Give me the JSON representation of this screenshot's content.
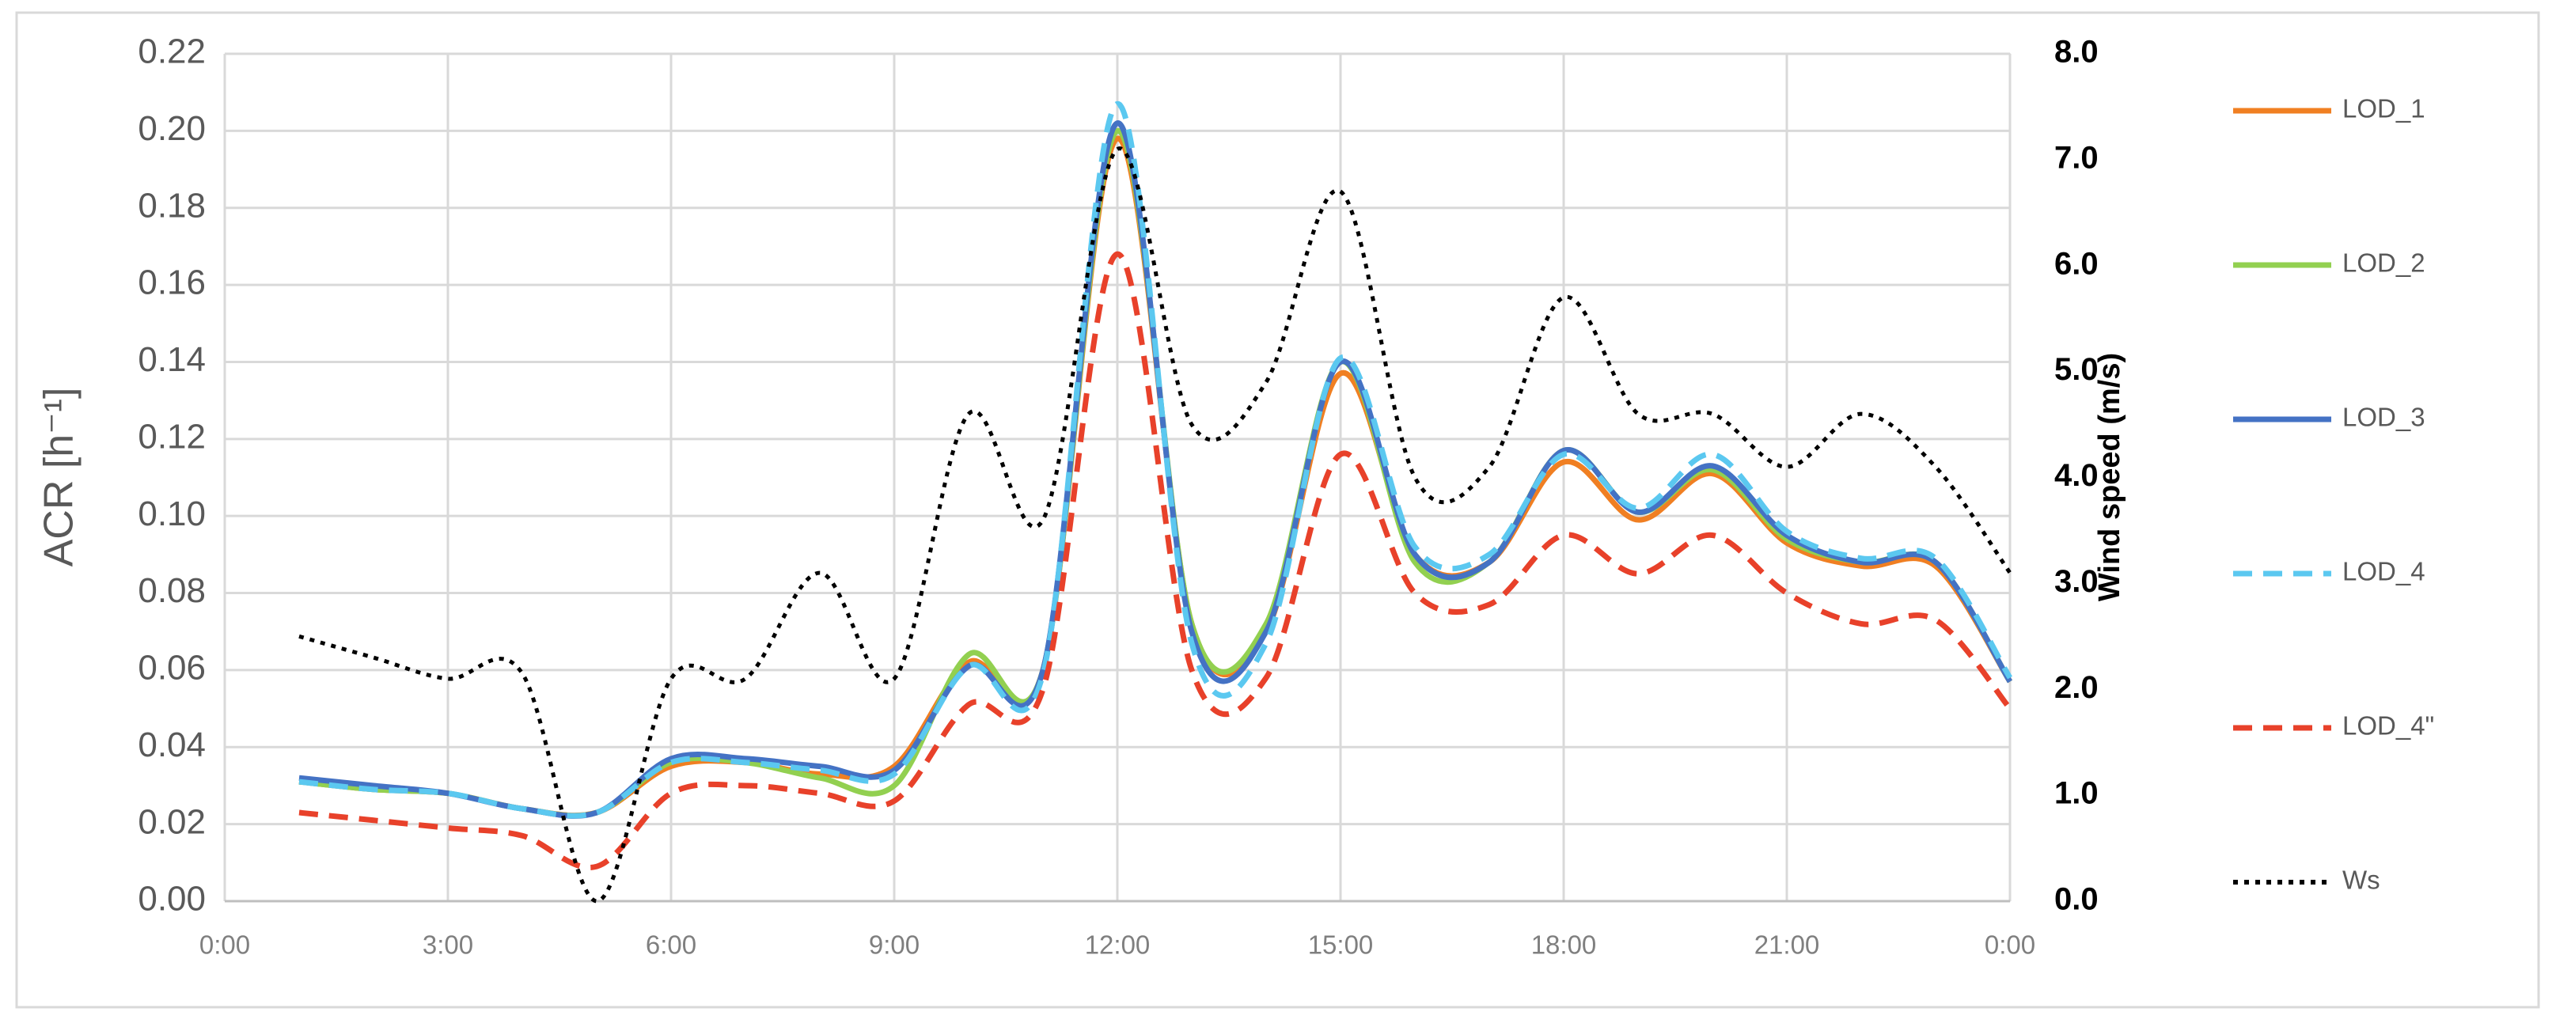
{
  "chart_data": {
    "type": "line",
    "y_label": "ACR [h⁻¹]",
    "y2_label": "Wind speed (m/s)",
    "x": [
      1,
      2,
      3,
      4,
      5,
      6,
      7,
      8,
      9,
      10,
      11,
      12,
      13,
      14,
      15,
      16,
      17,
      18,
      19,
      20,
      21,
      22,
      23,
      24
    ],
    "xlim": [
      0,
      24
    ],
    "xticks": [
      {
        "value": 0,
        "label": "0:00"
      },
      {
        "value": 3,
        "label": "3:00"
      },
      {
        "value": 6,
        "label": "6:00"
      },
      {
        "value": 9,
        "label": "9:00"
      },
      {
        "value": 12,
        "label": "12:00"
      },
      {
        "value": 15,
        "label": "15:00"
      },
      {
        "value": 18,
        "label": "18:00"
      },
      {
        "value": 21,
        "label": "21:00"
      },
      {
        "value": 24,
        "label": "0:00"
      }
    ],
    "ylim": [
      0,
      0.22
    ],
    "yticks": [
      {
        "value": 0,
        "label": "0.00"
      },
      {
        "value": 0.02,
        "label": "0.02"
      },
      {
        "value": 0.04,
        "label": "0.04"
      },
      {
        "value": 0.06,
        "label": "0.06"
      },
      {
        "value": 0.08,
        "label": "0.08"
      },
      {
        "value": 0.1,
        "label": "0.10"
      },
      {
        "value": 0.12,
        "label": "0.12"
      },
      {
        "value": 0.14,
        "label": "0.14"
      },
      {
        "value": 0.16,
        "label": "0.16"
      },
      {
        "value": 0.18,
        "label": "0.18"
      },
      {
        "value": 0.2,
        "label": "0.20"
      },
      {
        "value": 0.22,
        "label": "0.22"
      }
    ],
    "y2lim": [
      0,
      8
    ],
    "y2ticks": [
      {
        "value": 0,
        "label": "0.0"
      },
      {
        "value": 1,
        "label": "1.0"
      },
      {
        "value": 2,
        "label": "2.0"
      },
      {
        "value": 3,
        "label": "3.0"
      },
      {
        "value": 4,
        "label": "4.0"
      },
      {
        "value": 5,
        "label": "5.0"
      },
      {
        "value": 6,
        "label": "6.0"
      },
      {
        "value": 7,
        "label": "7.0"
      },
      {
        "value": 8,
        "label": "8.0"
      }
    ],
    "grid": true,
    "legend": "right",
    "series": [
      {
        "name": "LOD_1",
        "color": "#f07f22",
        "dash": "solid",
        "values": [
          0.031,
          0.029,
          0.028,
          0.024,
          0.023,
          0.035,
          0.036,
          0.033,
          0.035,
          0.062,
          0.06,
          0.198,
          0.072,
          0.07,
          0.137,
          0.09,
          0.088,
          0.114,
          0.099,
          0.111,
          0.093,
          0.087,
          0.087,
          0.057
        ]
      },
      {
        "name": "LOD_2",
        "color": "#92d050",
        "dash": "solid",
        "values": [
          0.031,
          0.029,
          0.028,
          0.024,
          0.023,
          0.036,
          0.036,
          0.032,
          0.03,
          0.064,
          0.06,
          0.2,
          0.072,
          0.072,
          0.14,
          0.088,
          0.088,
          0.117,
          0.101,
          0.112,
          0.094,
          0.088,
          0.088,
          0.057
        ]
      },
      {
        "name": "LOD_3",
        "color": "#4472c4",
        "dash": "solid",
        "values": [
          0.032,
          0.03,
          0.028,
          0.024,
          0.023,
          0.037,
          0.037,
          0.035,
          0.034,
          0.061,
          0.06,
          0.202,
          0.07,
          0.07,
          0.14,
          0.09,
          0.088,
          0.117,
          0.101,
          0.113,
          0.095,
          0.088,
          0.088,
          0.057
        ]
      },
      {
        "name": "LOD_4",
        "color": "#5bc8f0",
        "dash": "dashed",
        "values": [
          0.031,
          0.029,
          0.028,
          0.024,
          0.023,
          0.036,
          0.036,
          0.034,
          0.033,
          0.061,
          0.059,
          0.207,
          0.067,
          0.067,
          0.141,
          0.092,
          0.09,
          0.116,
          0.102,
          0.116,
          0.096,
          0.089,
          0.089,
          0.058
        ]
      },
      {
        "name": "LOD_4\"",
        "color": "#e8412a",
        "dash": "dashed",
        "values": [
          0.023,
          0.021,
          0.019,
          0.017,
          0.009,
          0.028,
          0.03,
          0.028,
          0.026,
          0.051,
          0.055,
          0.168,
          0.06,
          0.058,
          0.116,
          0.08,
          0.077,
          0.095,
          0.085,
          0.095,
          0.08,
          0.072,
          0.073,
          0.05
        ]
      },
      {
        "name": "Ws",
        "color": "#000000",
        "dash": "dotted",
        "axis": "y2",
        "values": [
          2.5,
          2.3,
          2.1,
          2.15,
          0.0,
          2.1,
          2.1,
          3.1,
          2.1,
          4.6,
          3.6,
          7.1,
          4.5,
          4.9,
          6.7,
          4.0,
          4.1,
          5.7,
          4.6,
          4.6,
          4.1,
          4.6,
          4.1,
          3.1
        ]
      }
    ]
  }
}
